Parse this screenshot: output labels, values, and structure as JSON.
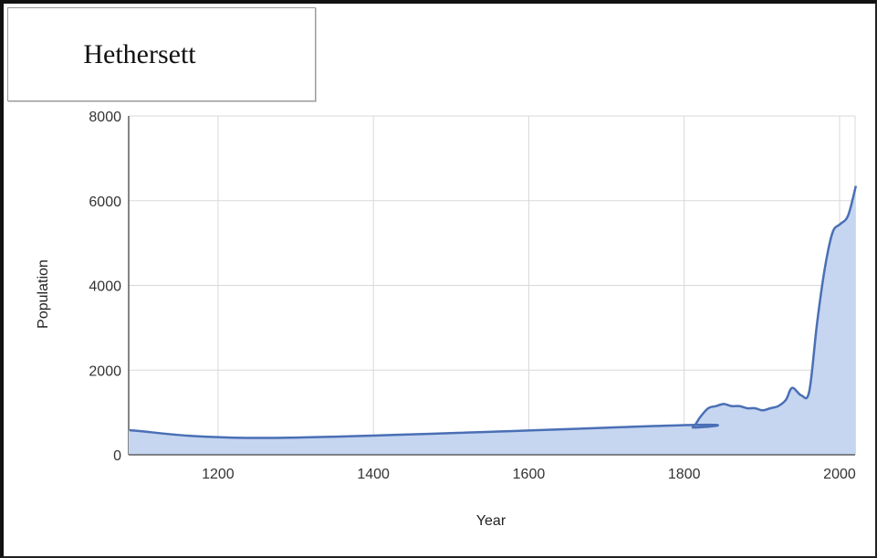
{
  "chart_data": {
    "type": "area",
    "title": "Hethersett",
    "xlabel": "Year",
    "ylabel": "Population",
    "xlim": [
      1085,
      2020
    ],
    "ylim": [
      0,
      8000
    ],
    "x_ticks": [
      1200,
      1400,
      1600,
      1800,
      2000
    ],
    "y_ticks": [
      0,
      2000,
      4000,
      6000,
      8000
    ],
    "grid": true,
    "colors": {
      "line": "#4a6fb5",
      "fill": "#c6d6f1",
      "grid": "#d9d9d9"
    },
    "series": [
      {
        "x": [
          1086,
          1275,
          1801,
          1811,
          1821,
          1831,
          1841,
          1851,
          1861,
          1871,
          1881,
          1891,
          1901,
          1911,
          1921,
          1931,
          1939,
          1951,
          1961,
          1971,
          1981,
          1991,
          2001,
          2011,
          2021
        ],
        "y": [
          580,
          400,
          700,
          650,
          900,
          1100,
          1150,
          1200,
          1150,
          1150,
          1100,
          1100,
          1050,
          1100,
          1150,
          1300,
          1580,
          1400,
          1500,
          3100,
          4400,
          5250,
          5450,
          5650,
          6350
        ]
      }
    ]
  }
}
